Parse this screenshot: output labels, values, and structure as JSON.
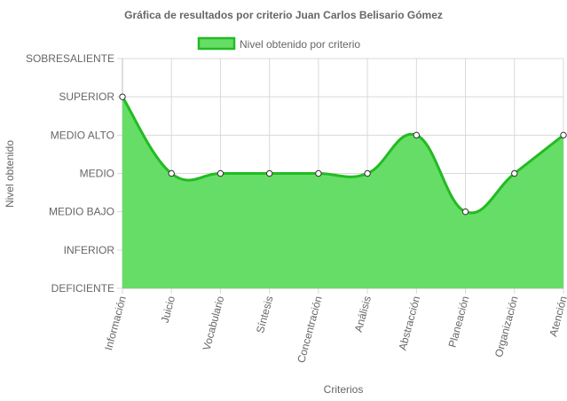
{
  "chart_data": {
    "type": "area",
    "title": "Gráfica de resultados por criterio Juan Carlos Belisario Gómez",
    "xlabel": "Criterios",
    "ylabel": "Nivel obtenido",
    "levels": [
      "DEFICIENTE",
      "INFERIOR",
      "MEDIO BAJO",
      "MEDIO",
      "MEDIO ALTO",
      "SUPERIOR",
      "SOBRESALIENTE"
    ],
    "ylim": [
      0,
      6
    ],
    "categories": [
      "Información",
      "Juicio",
      "Vocabulario",
      "Síntesis",
      "Concentración",
      "Análisis",
      "Abstracción",
      "Planeación",
      "Organización",
      "Atención"
    ],
    "series": [
      {
        "name": "Nivel obtenido por criterio",
        "values": [
          5,
          3,
          3,
          3,
          3,
          3,
          4,
          2,
          3,
          4
        ],
        "fill_color": "#66dd66",
        "line_color": "#22bb22"
      }
    ],
    "legend_position": "top",
    "grid": true
  }
}
